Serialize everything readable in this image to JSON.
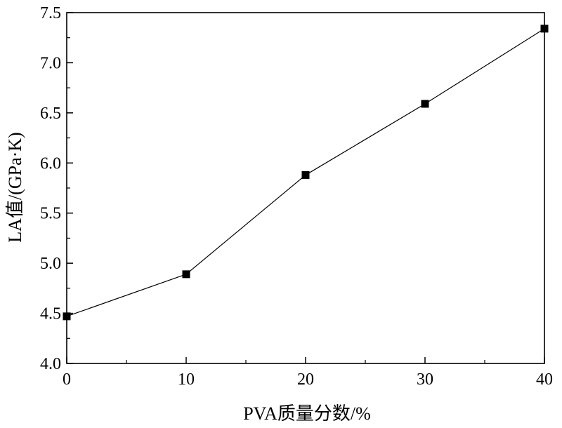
{
  "chart_data": {
    "type": "line",
    "title": "",
    "xlabel": "PVA质量分数/%",
    "ylabel": "LA值/(GPa·K)",
    "x": [
      0,
      10,
      20,
      30,
      40
    ],
    "series": [
      {
        "values": [
          4.47,
          4.89,
          5.88,
          6.59,
          7.34
        ]
      }
    ],
    "xlim": [
      0,
      40
    ],
    "ylim": [
      4.0,
      7.5
    ],
    "xticks": [
      0,
      10,
      20,
      30,
      40
    ],
    "xtick_labels": [
      "0",
      "10",
      "20",
      "30",
      "40"
    ],
    "yticks": [
      4.0,
      4.5,
      5.0,
      5.5,
      6.0,
      6.5,
      7.0,
      7.5
    ],
    "ytick_labels": [
      "4.0",
      "4.5",
      "5.0",
      "5.5",
      "6.0",
      "6.5",
      "7.0",
      "7.5"
    ],
    "grid": false,
    "legend": "none",
    "marker": "square",
    "line_color": "#000000",
    "marker_color": "#000000"
  }
}
